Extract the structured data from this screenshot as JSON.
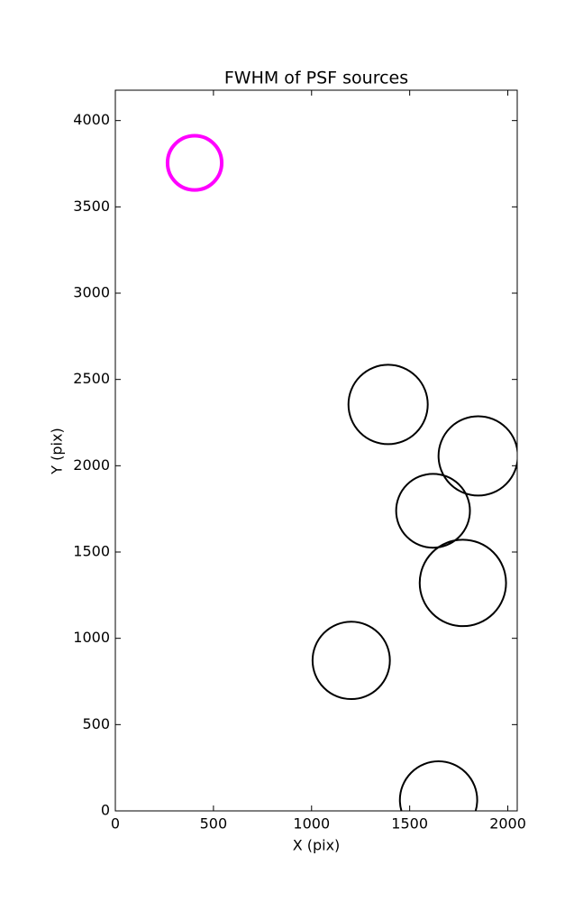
{
  "chart_data": {
    "type": "scatter",
    "title": "FWHM of PSF sources",
    "x_label": "X (pix)",
    "y_label": "Y (pix)",
    "x": [
      404,
      1390,
      1849,
      1619,
      1771,
      1202,
      1647
    ],
    "values": [
      3755,
      2355,
      2057,
      1739,
      1321,
      872,
      63
    ],
    "sizes": [
      138,
      202,
      202,
      188,
      220,
      197,
      197
    ],
    "colors": [
      "#ff00ff",
      "#000000",
      "#000000",
      "#000000",
      "#000000",
      "#000000",
      "#000000"
    ],
    "linewidths": [
      4,
      2,
      2,
      2,
      2,
      2,
      2
    ],
    "xlim": [
      0,
      2048
    ],
    "ylim": [
      0,
      4176
    ],
    "xticks": [
      0,
      500,
      1000,
      1500,
      2000
    ],
    "yticks": [
      0,
      500,
      1000,
      1500,
      2000,
      2500,
      3000,
      3500,
      4000
    ]
  }
}
